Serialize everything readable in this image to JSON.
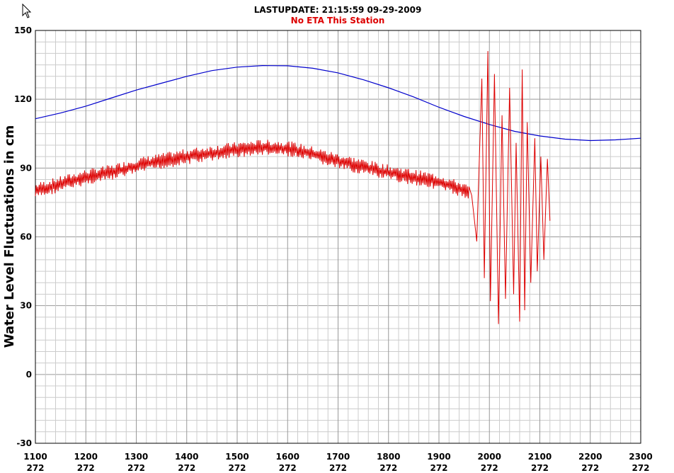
{
  "colors": {
    "predicted": "#0000cc",
    "observed": "#dd0000",
    "subtitle": "#dd0000",
    "highlight_tick": "#0000cc",
    "grid_major": "#999999",
    "grid_minor": "#cccccc"
  },
  "cursor_icon": "mouse-pointer-icon",
  "chart_data": {
    "type": "line",
    "title": "LASTUPDATE: 21:15:59  09-29-2009",
    "subtitle": "No ETA This Station",
    "ylabel": "Water Level Fluctuations in cm",
    "xlabel": "",
    "xlim": [
      1100,
      2300
    ],
    "ylim": [
      -30,
      150
    ],
    "grid": true,
    "x_ticks": [
      {
        "time": "1100",
        "day": "272"
      },
      {
        "time": "1200",
        "day": "272",
        "highlight": true
      },
      {
        "time": "1300",
        "day": "272"
      },
      {
        "time": "1400",
        "day": "272"
      },
      {
        "time": "1500",
        "day": "272"
      },
      {
        "time": "1600",
        "day": "272"
      },
      {
        "time": "1700",
        "day": "272"
      },
      {
        "time": "1800",
        "day": "272"
      },
      {
        "time": "1900",
        "day": "272"
      },
      {
        "time": "2000",
        "day": "272"
      },
      {
        "time": "2100",
        "day": "272"
      },
      {
        "time": "2200",
        "day": "272"
      },
      {
        "time": "2300",
        "day": "272"
      }
    ],
    "y_ticks": [
      "150",
      "120",
      "90",
      "60",
      "30",
      "0",
      "-30"
    ],
    "series": [
      {
        "key": "predicted",
        "x": [
          1100,
          1150,
          1200,
          1250,
          1300,
          1350,
          1400,
          1450,
          1500,
          1550,
          1600,
          1650,
          1700,
          1750,
          1800,
          1850,
          1900,
          1950,
          2000,
          2050,
          2100,
          2150,
          2200,
          2250,
          2300
        ],
        "values": [
          111.5,
          114,
          117,
          120.5,
          124,
          127,
          130,
          132.5,
          134,
          134.7,
          134.6,
          133.5,
          131.5,
          128.5,
          125,
          121,
          116.5,
          112.5,
          109,
          106,
          104,
          102.6,
          102,
          102.3,
          103
        ]
      },
      {
        "key": "observed",
        "x": [
          1100,
          1150,
          1200,
          1250,
          1300,
          1350,
          1400,
          1450,
          1500,
          1550,
          1600,
          1650,
          1700,
          1750,
          1800,
          1850,
          1900,
          1940,
          1960
        ],
        "values": [
          80,
          83,
          86,
          88,
          91,
          93,
          95,
          96.5,
          98,
          99,
          98.5,
          96,
          93,
          90.5,
          88,
          86,
          84,
          81,
          79
        ],
        "noise_amplitude": 2.5,
        "burst": {
          "x": [
            1965,
            1975,
            1985,
            1990,
            1997,
            2002,
            2010,
            2018,
            2025,
            2032,
            2040,
            2048,
            2053,
            2060,
            2065,
            2070,
            2075,
            2082,
            2090,
            2095,
            2102,
            2108,
            2115,
            2120
          ],
          "values": [
            78,
            58,
            129,
            42,
            141,
            32,
            131,
            22,
            113,
            33,
            125,
            35,
            101,
            23,
            133,
            28,
            110,
            40,
            103,
            45,
            95,
            50,
            94,
            67
          ]
        }
      }
    ]
  }
}
